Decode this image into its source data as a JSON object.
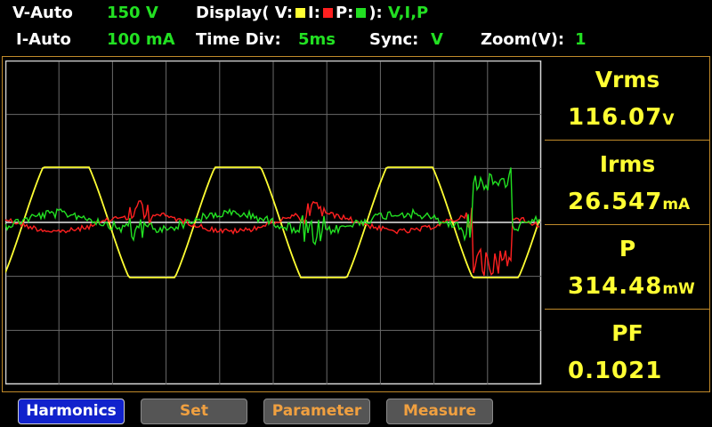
{
  "header": {
    "v_range_label": "V-Auto",
    "v_range_value": "150 V",
    "display_label": "Display( V:",
    "display_i": "I:",
    "display_p": "P:",
    "display_close": "):",
    "display_value": "V,I,P",
    "i_range_label": "I-Auto",
    "i_range_value": "100 mA",
    "time_div_label": "Time Div:",
    "time_div_value": "5ms",
    "sync_label": "Sync:",
    "sync_value": "V",
    "zoom_label": "Zoom(V):",
    "zoom_value": "1"
  },
  "colors": {
    "voltage": "#ffff33",
    "current": "#ff2020",
    "power": "#22e022",
    "frame": "#c08a2a"
  },
  "measurements": [
    {
      "label": "Vrms",
      "value": "116.07",
      "unit": "V"
    },
    {
      "label": "Irms",
      "value": "26.547",
      "unit": "mA"
    },
    {
      "label": "P",
      "value": "314.48",
      "unit": "mW"
    },
    {
      "label": "PF",
      "value": "0.1021",
      "unit": ""
    }
  ],
  "buttons": [
    {
      "label": "Harmonics",
      "active": true
    },
    {
      "label": "Set",
      "active": false
    },
    {
      "label": "Parameter",
      "active": false
    },
    {
      "label": "Measure",
      "active": false
    }
  ],
  "waveform": {
    "divisions_x": 10,
    "divisions_y": 6,
    "voltage_cycles": 3
  }
}
